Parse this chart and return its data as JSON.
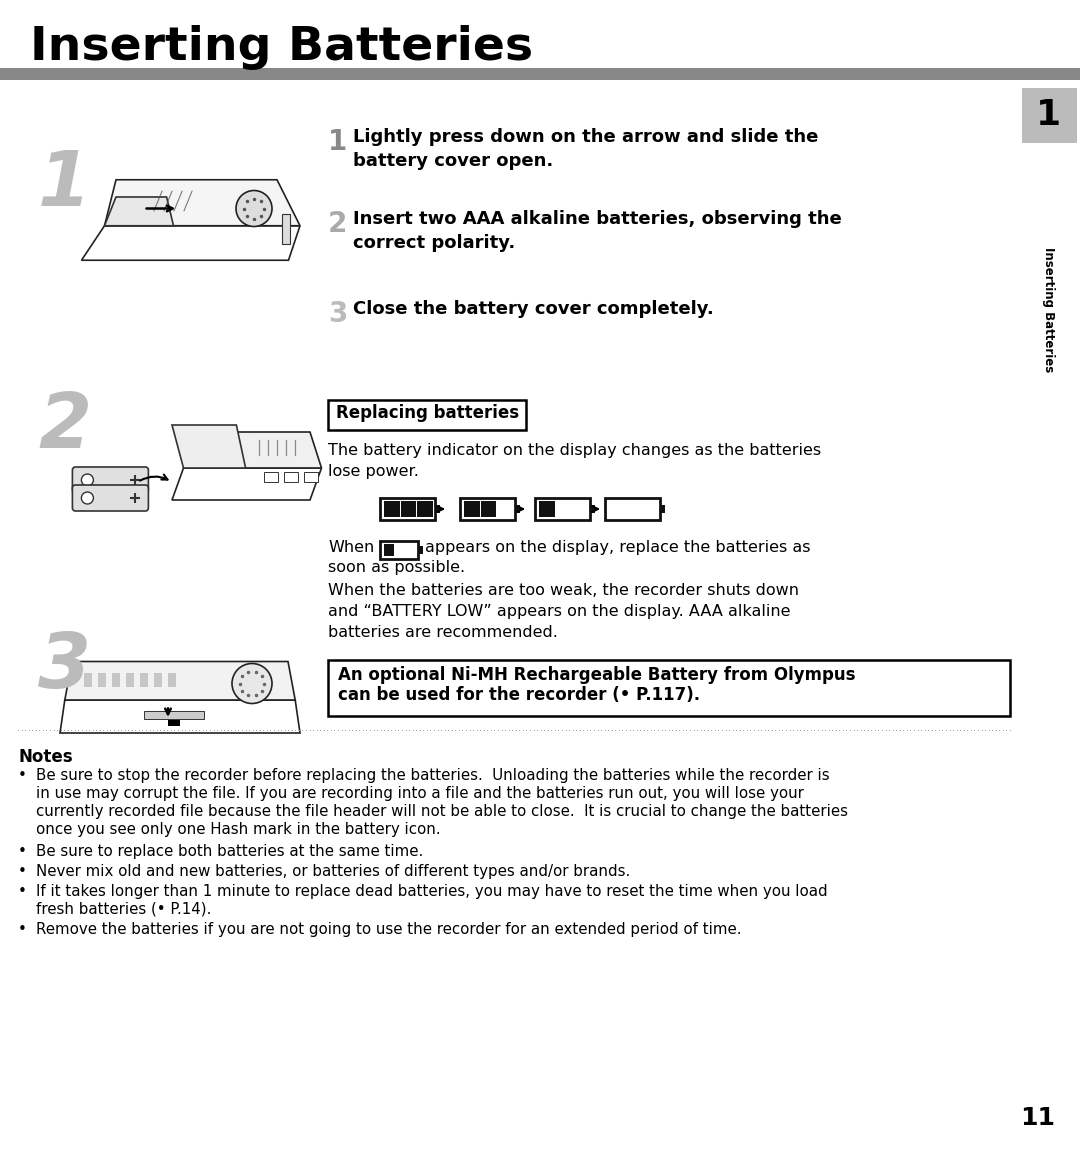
{
  "title": "Inserting Batteries",
  "bg_color": "#ffffff",
  "title_color": "#000000",
  "title_fontsize": 34,
  "sidebar_color": "#cccccc",
  "sidebar_text": "Inserting Batteries",
  "sidebar_number": "1",
  "step1_text_line1": "Lightly press down on the arrow and slide the",
  "step1_text_line2": "battery cover open.",
  "step2_text_line1": "Insert two AAA alkaline batteries, observing the",
  "step2_text_line2": "correct polarity.",
  "step3_text": "Close the battery cover completely.",
  "left_num1": "1",
  "left_num2": "2",
  "left_num3": "3",
  "replacing_title": "Replacing batteries",
  "replacing_body1": "The battery indicator on the display changes as the batteries",
  "replacing_body2": "lose power.",
  "when_line1": "When",
  "when_line2": "appears on the display, replace the batteries as",
  "when_line3": "soon as possible.",
  "weak_text1": "When the batteries are too weak, the recorder shuts down",
  "weak_text2": "and “BATTERY LOW” appears on the display. AAA alkaline",
  "weak_text3": "batteries are recommended.",
  "optional_text1": "An optional Ni-MH Rechargeable Battery from Olympus",
  "optional_text2": "can be used for the recorder (• P.117).",
  "notes_header": "Notes",
  "note1_line1": "Be sure to stop the recorder before replacing the batteries.  Unloading the batteries while the recorder is",
  "note1_line2": "in use may corrupt the file. If you are recording into a file and the batteries run out, you will lose your",
  "note1_line3": "currently recorded file because the file header will not be able to close.  It is crucial to change the batteries",
  "note1_line4": "once you see only one Hash mark in the battery icon.",
  "note2": "Be sure to replace both batteries at the same time.",
  "note3": "Never mix old and new batteries, or batteries of different types and/or brands.",
  "note4_line1": "If it takes longer than 1 minute to replace dead batteries, you may have to reset the time when you load",
  "note4_line2": "fresh batteries (• P.14).",
  "note5": "Remove the batteries if you are not going to use the recorder for an extended period of time.",
  "page_number": "11",
  "divider_color": "#888888",
  "step_num_color_active": "#aaaaaa",
  "text_color": "#000000",
  "sidebar_num_bg": "#bbbbbb"
}
